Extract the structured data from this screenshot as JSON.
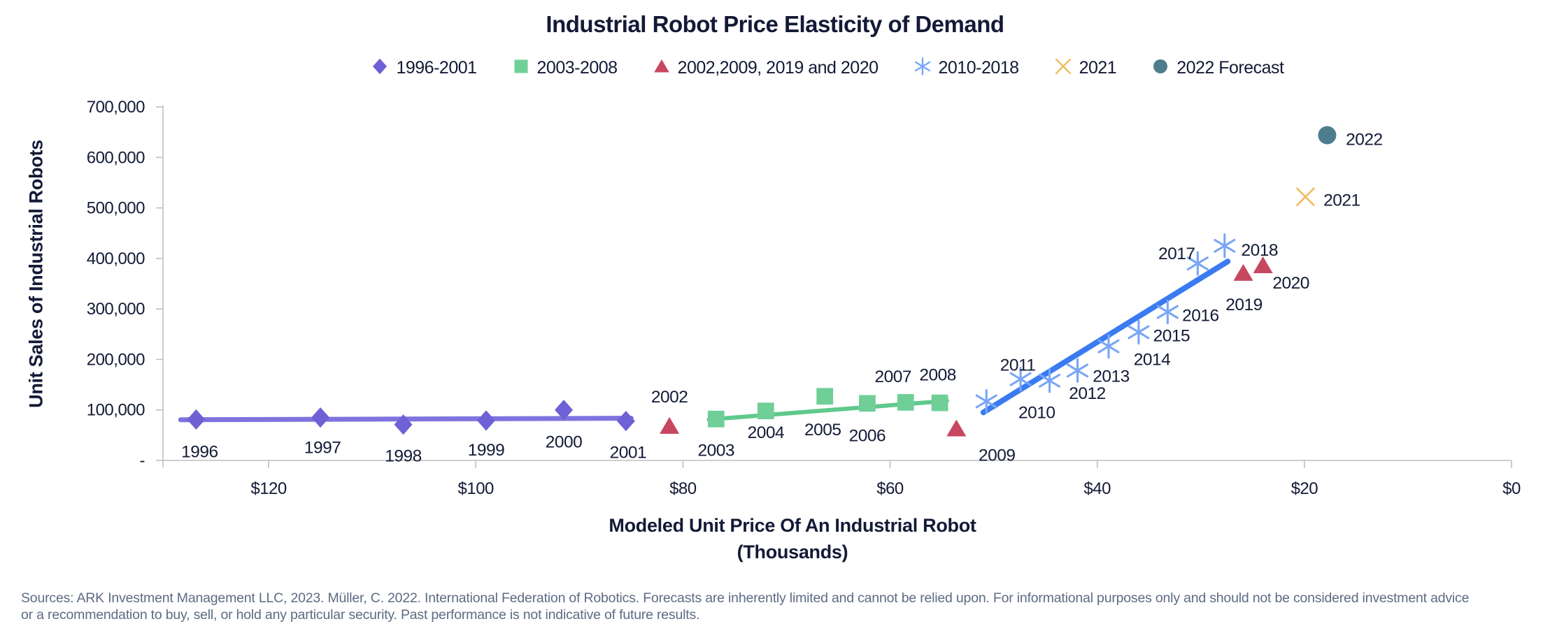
{
  "source_note": "Sources: ARK Investment Management LLC, 2023. Müller, C. 2022. International Federation of Robotics. Forecasts are inherently limited and cannot be relied upon. For informational purposes only and should not be considered investment advice or a recommendation to buy, sell, or hold any particular security. Past performance is not indicative of future results.",
  "colors": {
    "ink": "#131A36",
    "axis": "#BFBFBF",
    "source_text": "#5D6B84",
    "purple": "#6E61D5",
    "green": "#6FCF97",
    "red": "#C84760",
    "blue": "#79A6F6",
    "blue_line": "#3B7BF2",
    "gold": "#F0BC62",
    "teal": "#4E7E8E"
  },
  "chart_data": {
    "type": "scatter",
    "title": "Industrial Robot Price Elasticity of Demand",
    "xlabel": "Modeled Unit Price Of An Industrial Robot",
    "xlabel_sub": "(Thousands)",
    "ylabel": "Unit Sales of Industrial Robots",
    "x_axis": {
      "reversed": true,
      "range_displayed": [
        130.2,
        0
      ],
      "tick_values": [
        120,
        100,
        80,
        60,
        40,
        20,
        0
      ],
      "tick_labels": [
        "$120",
        "$100",
        "$80",
        "$60",
        "$40",
        "$20",
        "$0"
      ]
    },
    "y_axis": {
      "range": [
        0,
        700000
      ],
      "tick_values": [
        700000,
        600000,
        500000,
        400000,
        300000,
        200000,
        100000,
        0
      ],
      "tick_labels": [
        "700,000",
        "600,000",
        "500,000",
        "400,000",
        "300,000",
        "200,000",
        "100,000",
        "-"
      ]
    },
    "series": [
      {
        "name": "1996-2001",
        "legend_label": "1996-2001",
        "marker": "diamond",
        "color": "#6E61D5",
        "line_color": "#7F73DF",
        "line_width": 7,
        "marker_size": 13,
        "trendline": [
          [
            128.5,
            80500
          ],
          [
            85,
            83500
          ]
        ],
        "points": [
          {
            "label": "1996",
            "price": 127.0,
            "units": 81000,
            "dx": 5,
            "dy": 46
          },
          {
            "label": "1997",
            "price": 115.0,
            "units": 85000,
            "dx": 3,
            "dy": 43
          },
          {
            "label": "1998",
            "price": 107.0,
            "units": 71000,
            "dx": 0,
            "dy": 45
          },
          {
            "label": "1999",
            "price": 99.0,
            "units": 79000,
            "dx": 0,
            "dy": 42
          },
          {
            "label": "2000",
            "price": 91.5,
            "units": 100000,
            "dx": 0,
            "dy": 46
          },
          {
            "label": "2001",
            "price": 85.5,
            "units": 78000,
            "dx": 3,
            "dy": 45
          }
        ]
      },
      {
        "name": "2003-2008",
        "legend_label": "2003-2008",
        "marker": "square",
        "color": "#6FCF97",
        "line_color": "#5FC98D",
        "line_width": 6,
        "marker_size": 12.5,
        "trendline": [
          [
            77.5,
            81000
          ],
          [
            54.5,
            118000
          ]
        ],
        "points": [
          {
            "label": "2003",
            "price": 76.8,
            "units": 82000,
            "dx": 0,
            "dy": 45
          },
          {
            "label": "2004",
            "price": 72.0,
            "units": 98000,
            "dx": 0,
            "dy": 31
          },
          {
            "label": "2005",
            "price": 66.3,
            "units": 127000,
            "dx": -3,
            "dy": 48
          },
          {
            "label": "2006",
            "price": 62.2,
            "units": 113000,
            "dx": 0,
            "dy": 46
          },
          {
            "label": "2007",
            "price": 58.5,
            "units": 115000,
            "dx": -18,
            "dy": -37
          },
          {
            "label": "2008",
            "price": 55.2,
            "units": 114000,
            "dx": -3,
            "dy": -40
          }
        ]
      },
      {
        "name": "2002, 2009, 2019 and 2020",
        "legend_label": "2002,2009, 2019 and 2020",
        "marker": "triangle",
        "color": "#C84760",
        "line_color": null,
        "line_width": 0,
        "marker_size": 13,
        "trendline": null,
        "points": [
          {
            "label": "2002",
            "price": 81.3,
            "units": 68000,
            "dx": 0,
            "dy": -42
          },
          {
            "label": "2009",
            "price": 53.6,
            "units": 63000,
            "dx": 58,
            "dy": 38
          },
          {
            "label": "2019",
            "price": 25.9,
            "units": 371000,
            "dx": 1,
            "dy": 45
          },
          {
            "label": "2020",
            "price": 24.0,
            "units": 386000,
            "dx": 40,
            "dy": 25
          }
        ]
      },
      {
        "name": "2010-2018",
        "legend_label": "2010-2018",
        "marker": "asterisk",
        "color": "#79A6F6",
        "line_color": "#3B7BF2",
        "line_width": 8,
        "marker_size": 14,
        "trendline": [
          [
            51,
            95000
          ],
          [
            27.4,
            394000
          ]
        ],
        "points": [
          {
            "label": "2010",
            "price": 50.7,
            "units": 117000,
            "dx": 72,
            "dy": 16
          },
          {
            "label": "2011",
            "price": 47.4,
            "units": 161000,
            "dx": -4,
            "dy": -20
          },
          {
            "label": "2012",
            "price": 44.6,
            "units": 158000,
            "dx": 54,
            "dy": 18
          },
          {
            "label": "2013",
            "price": 41.9,
            "units": 178000,
            "dx": 48,
            "dy": 8
          },
          {
            "label": "2014",
            "price": 38.9,
            "units": 226000,
            "dx": 62,
            "dy": 19
          },
          {
            "label": "2015",
            "price": 36.0,
            "units": 254000,
            "dx": 47,
            "dy": 5
          },
          {
            "label": "2016",
            "price": 33.2,
            "units": 294000,
            "dx": 47,
            "dy": 5
          },
          {
            "label": "2017",
            "price": 30.3,
            "units": 390000,
            "dx": -30,
            "dy": -14
          },
          {
            "label": "2018",
            "price": 27.7,
            "units": 425000,
            "dx": 50,
            "dy": 6
          }
        ]
      },
      {
        "name": "2021",
        "legend_label": "2021",
        "marker": "x",
        "color": "#F0BC62",
        "line_color": null,
        "line_width": 0,
        "marker_size": 12,
        "trendline": null,
        "points": [
          {
            "label": "2021",
            "price": 19.9,
            "units": 522000,
            "dx": 52,
            "dy": 5
          }
        ]
      },
      {
        "name": "2022 Forecast",
        "legend_label": "2022 Forecast",
        "marker": "circle",
        "color": "#4E7E8E",
        "line_color": null,
        "line_width": 0,
        "marker_size": 13,
        "trendline": null,
        "points": [
          {
            "label": "2022",
            "price": 17.8,
            "units": 644000,
            "dx": 53,
            "dy": 6
          }
        ]
      }
    ]
  }
}
